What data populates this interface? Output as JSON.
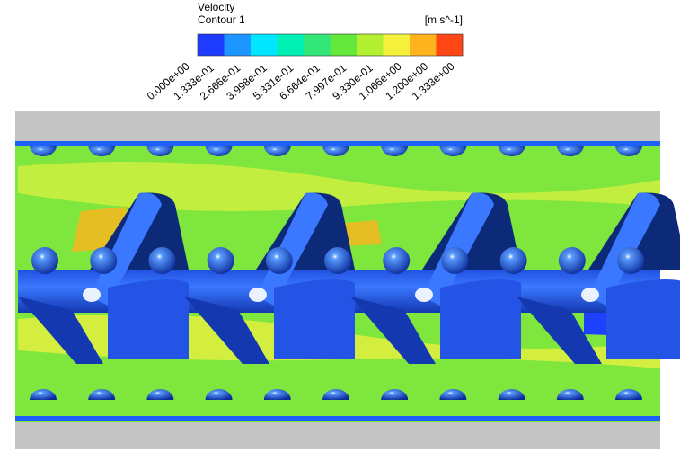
{
  "legend": {
    "title": "Velocity",
    "subtitle": "Contour 1",
    "unit": "[m s^-1]",
    "ticks": [
      "0.000e+00",
      "1.333e-01",
      "2.666e-01",
      "3.998e-01",
      "5.331e-01",
      "6.664e-01",
      "7.997e-01",
      "9.330e-01",
      "1.066e+00",
      "1.200e+00",
      "1.333e+00"
    ],
    "colors": [
      "#1e3cff",
      "#1e96ff",
      "#00e6ff",
      "#00f0b4",
      "#32e67a",
      "#64e83c",
      "#b4f032",
      "#f5f03c",
      "#ffb41e",
      "#ff4614"
    ]
  }
}
